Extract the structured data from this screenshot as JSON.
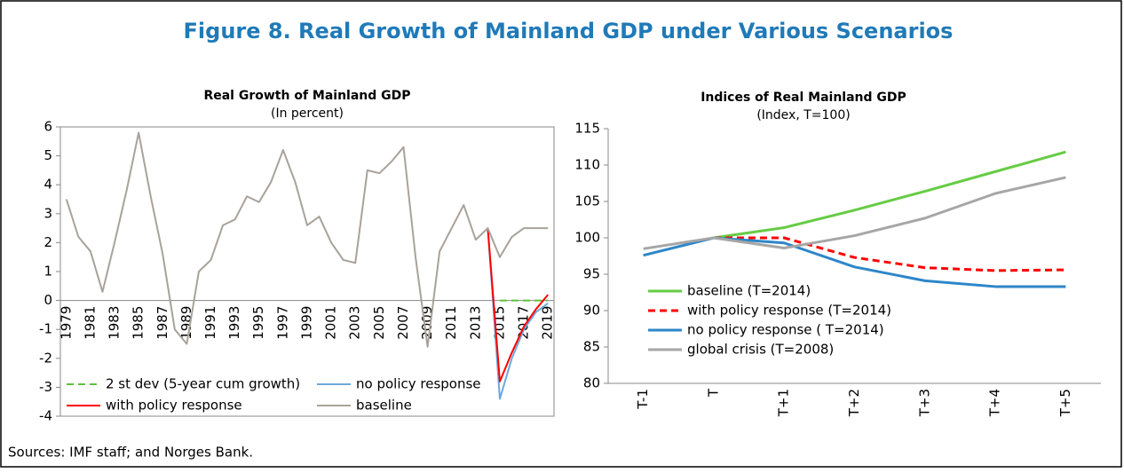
{
  "title": "Figure 8. Real Growth of Mainland GDP under Various Scenarios",
  "source": "Sources: IMF staff; and Norges Bank.",
  "chart_data": [
    {
      "type": "line",
      "title": "Real Growth of Mainland GDP",
      "subtitle": "(In percent)",
      "categories": [
        "1979",
        null,
        "1981",
        null,
        "1983",
        null,
        "1985",
        null,
        "1987",
        null,
        "1989",
        null,
        "1991",
        null,
        "1993",
        null,
        "1995",
        null,
        "1997",
        null,
        "1999",
        null,
        "2001",
        null,
        "2003",
        null,
        "2005",
        null,
        "2007",
        null,
        "2009",
        null,
        "2011",
        null,
        "2013",
        null,
        "2015",
        null,
        "2017",
        null,
        "2019"
      ],
      "ylim": [
        -4,
        6
      ],
      "yticks": [
        -4,
        -3,
        -2,
        -1,
        0,
        1,
        2,
        3,
        4,
        5,
        6
      ],
      "frame": true,
      "series": [
        {
          "name": "2 st dev (5-year cum growth)",
          "color": "#5ec13a",
          "dash": true,
          "values": [
            null,
            null,
            null,
            null,
            null,
            null,
            null,
            null,
            null,
            null,
            null,
            null,
            null,
            null,
            null,
            null,
            null,
            null,
            null,
            null,
            null,
            null,
            null,
            null,
            null,
            null,
            null,
            null,
            null,
            null,
            null,
            null,
            null,
            null,
            null,
            null,
            0,
            0,
            0,
            0,
            0
          ]
        },
        {
          "name": "no policy response",
          "color": "#6fa8dc",
          "dash": false,
          "values": [
            null,
            null,
            null,
            null,
            null,
            null,
            null,
            null,
            null,
            null,
            null,
            null,
            null,
            null,
            null,
            null,
            null,
            null,
            null,
            null,
            null,
            null,
            null,
            null,
            null,
            null,
            null,
            null,
            null,
            null,
            null,
            null,
            null,
            null,
            null,
            2.5,
            -3.4,
            -2.0,
            -1.0,
            -0.4,
            -0.1
          ]
        },
        {
          "name": "with policy response",
          "color": "#ff0000",
          "dash": false,
          "values": [
            null,
            null,
            null,
            null,
            null,
            null,
            null,
            null,
            null,
            null,
            null,
            null,
            null,
            null,
            null,
            null,
            null,
            null,
            null,
            null,
            null,
            null,
            null,
            null,
            null,
            null,
            null,
            null,
            null,
            null,
            null,
            null,
            null,
            null,
            null,
            2.5,
            -2.8,
            -1.8,
            -0.9,
            -0.3,
            0.2
          ]
        },
        {
          "name": "baseline",
          "color": "#a8a29a",
          "dash": false,
          "values": [
            3.5,
            2.2,
            1.7,
            0.3,
            2.0,
            3.8,
            5.8,
            3.6,
            1.6,
            -1.0,
            -1.5,
            1.0,
            1.4,
            2.6,
            2.8,
            3.6,
            3.4,
            4.1,
            5.2,
            4.1,
            2.6,
            2.9,
            2.0,
            1.4,
            1.3,
            4.5,
            4.4,
            4.8,
            5.3,
            1.5,
            -1.6,
            1.7,
            2.5,
            3.3,
            2.1,
            2.5,
            1.5,
            2.2,
            2.5,
            2.5,
            2.5
          ]
        }
      ]
    },
    {
      "type": "line",
      "title": "Indices of Real Mainland GDP",
      "subtitle": "(Index, T=100)",
      "categories": [
        "T-1",
        "T",
        "T+1",
        "T+2",
        "T+3",
        "T+4",
        "T+5"
      ],
      "ylim": [
        80,
        115
      ],
      "yticks": [
        80,
        85,
        90,
        95,
        100,
        105,
        110,
        115
      ],
      "frame": false,
      "series": [
        {
          "name": "baseline (T=2014)",
          "color": "#66cc44",
          "dash": false,
          "values": [
            null,
            100,
            101.4,
            103.8,
            106.4,
            109.1,
            111.8
          ]
        },
        {
          "name": "with policy response (T=2014)",
          "color": "#ff0000",
          "dash": true,
          "values": [
            null,
            100,
            100.0,
            97.3,
            95.9,
            95.5,
            95.6
          ]
        },
        {
          "name": "no policy response ( T=2014)",
          "color": "#2e86c8",
          "dash": false,
          "values": [
            97.6,
            100,
            99.3,
            96.0,
            94.1,
            93.3,
            93.3
          ]
        },
        {
          "name": "global crisis (T=2008)",
          "color": "#a6a6a6",
          "dash": false,
          "values": [
            98.5,
            100,
            98.6,
            100.3,
            102.7,
            106.1,
            108.3
          ]
        }
      ]
    }
  ]
}
